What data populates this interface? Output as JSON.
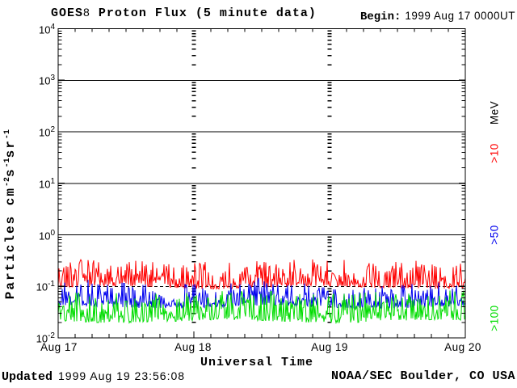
{
  "header": {
    "title_prefix": "GOES",
    "title_sat": "8",
    "title_rest": " Proton Flux (5 minute data)",
    "begin_label": "Begin:",
    "begin_value": "1999 Aug 17 0000UT"
  },
  "footer": {
    "updated_label": "Updated",
    "updated_value": "1999 Aug 19 23:56:08",
    "credit": "NOAA/SEC Boulder, CO USA"
  },
  "chart_data": {
    "type": "line",
    "title": "GOES8 Proton Flux (5 minute data)",
    "xlabel": "Universal Time",
    "ylabel": "Particles cm^-2 s^-1 sr^-1",
    "ylabel_parts": [
      {
        "text": "Particles cm"
      },
      {
        "sup": "-2"
      },
      {
        "text": "s"
      },
      {
        "sup": "-1"
      },
      {
        "text": "sr"
      },
      {
        "sup": "-1"
      }
    ],
    "y_scale": "log",
    "ylim": [
      0.01,
      10000
    ],
    "y_ticks": [
      {
        "base": "10",
        "exp": "4"
      },
      {
        "base": "10",
        "exp": "3"
      },
      {
        "base": "10",
        "exp": "2"
      },
      {
        "base": "10",
        "exp": "1"
      },
      {
        "base": "10",
        "exp": "0"
      },
      {
        "base": "10",
        "exp": "-1"
      },
      {
        "base": "10",
        "exp": "-2"
      }
    ],
    "x_ticks": [
      "Aug 17",
      "Aug 18",
      "Aug 19",
      "Aug 20"
    ],
    "x_minor_tick_hours": 3,
    "x_start": "1999 Aug 17 0000UT",
    "x_days": 3,
    "grid": {
      "horizontal": "solid lines at each decade 10^3..10^0, dashed at 10^-1",
      "vertical": "dashed log-tick columns at day boundaries Aug 18 and Aug 19"
    },
    "legend_position": "right-edge-rotated",
    "legend": [
      {
        "label": "MeV",
        "color": "#000000"
      },
      {
        "label": ">10",
        "color": "#ff0000"
      },
      {
        "label": ">50",
        "color": "#0000ee"
      },
      {
        "label": ">100",
        "color": "#00dd00"
      }
    ],
    "series": [
      {
        "name": ">10 MeV",
        "color": "#ff0000",
        "flux_min": 0.09,
        "flux_max": 0.36,
        "flux_typical": 0.13,
        "log_base": -1.02,
        "log_amp": 0.52,
        "spike_prob": 0.05,
        "spike_amp": 0.12
      },
      {
        "name": ">50 MeV",
        "color": "#0000ee",
        "flux_min": 0.04,
        "flux_max": 0.12,
        "flux_typical": 0.065,
        "log_base": -1.4,
        "log_amp": 0.48,
        "spike_prob": 0.03,
        "spike_amp": 0.1
      },
      {
        "name": ">100 MeV",
        "color": "#00dd00",
        "flux_min": 0.021,
        "flux_max": 0.08,
        "flux_typical": 0.04,
        "log_base": -1.68,
        "log_amp": 0.58,
        "spike_prob": 0.0,
        "spike_amp": 0
      }
    ],
    "points_per_series": 505,
    "seed": 19990817
  }
}
